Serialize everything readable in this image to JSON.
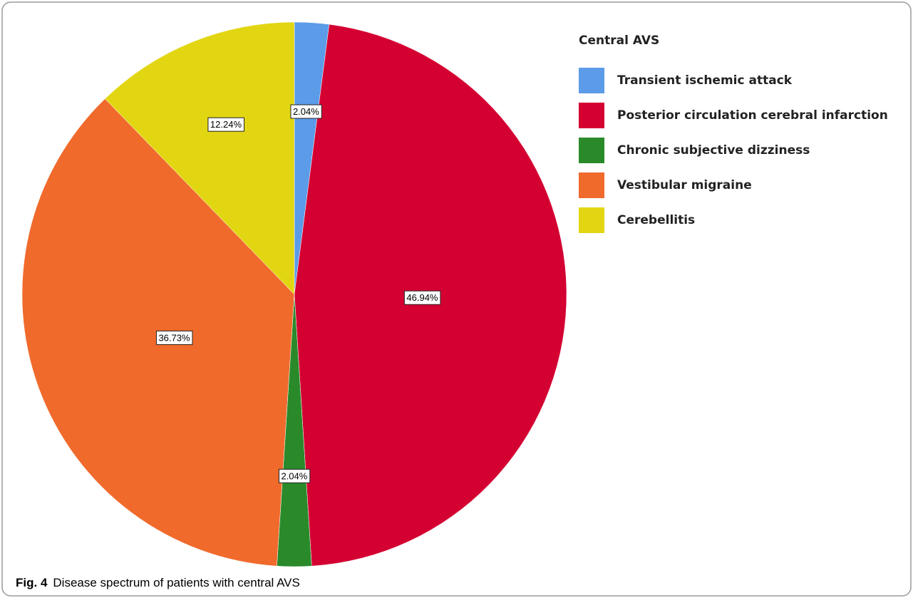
{
  "chart_data": {
    "type": "pie",
    "legend_title": "Central AVS",
    "categories": [
      "Transient ischemic attack",
      "Posterior circulation cerebral infarction",
      "Chronic subjective dizziness",
      "Vestibular migraine",
      "Cerebellitis"
    ],
    "values": [
      2.04,
      46.94,
      2.04,
      36.73,
      12.24
    ],
    "value_labels": [
      "2.04%",
      "46.94%",
      "2.04%",
      "36.73%",
      "12.24%"
    ],
    "colors": [
      "#5b9be8",
      "#d40032",
      "#2a8a2a",
      "#f06a2c",
      "#e2d613"
    ],
    "legend": "right"
  },
  "caption_label": "Fig. 4",
  "caption": "Disease spectrum of patients with central AVS"
}
